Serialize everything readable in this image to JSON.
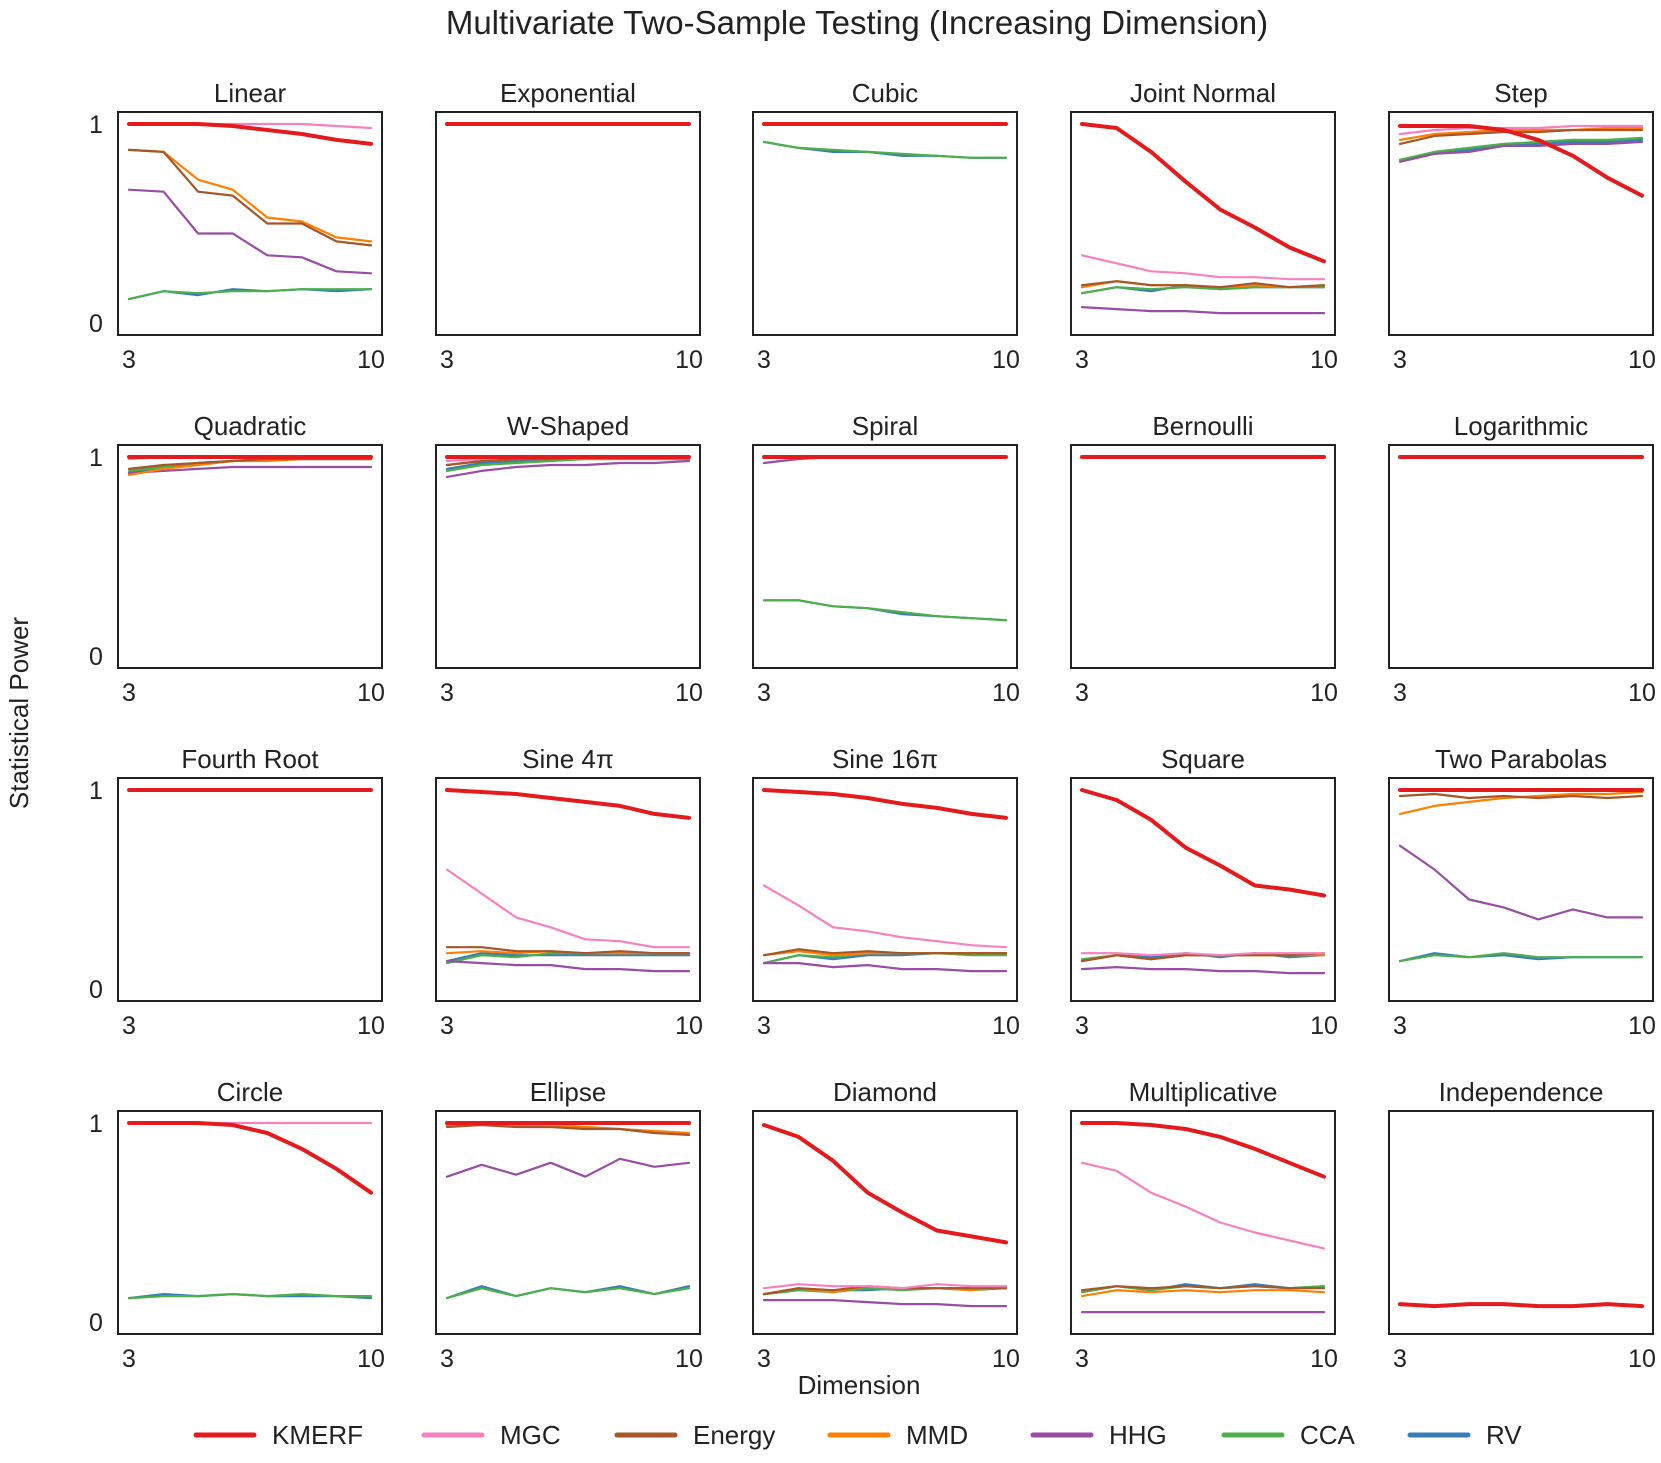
{
  "title": "Multivariate Two-Sample Testing (Increasing Dimension)",
  "xlabel": "Dimension",
  "ylabel": "Statistical Power",
  "legend": [
    {
      "key": "KMERF",
      "label": "KMERF",
      "color": "#e41a1c"
    },
    {
      "key": "MGC",
      "label": "MGC",
      "color": "#f781bf"
    },
    {
      "key": "Energy",
      "label": "Energy",
      "color": "#a65628"
    },
    {
      "key": "MMD",
      "label": "MMD",
      "color": "#ff7f00"
    },
    {
      "key": "HHG",
      "label": "HHG",
      "color": "#984ea3"
    },
    {
      "key": "CCA",
      "label": "CCA",
      "color": "#4daf4a"
    },
    {
      "key": "RV",
      "label": "RV",
      "color": "#377eb8"
    }
  ],
  "chart_data": {
    "type": "line",
    "x": [
      3,
      4,
      5,
      6,
      7,
      8,
      9,
      10
    ],
    "xticks": [
      "3",
      "10"
    ],
    "yticks": [
      "0",
      "1"
    ],
    "ylim": [
      0,
      1
    ],
    "panels": [
      {
        "title": "Linear",
        "series": {
          "RV": [
            0.12,
            0.16,
            0.14,
            0.17,
            0.16,
            0.17,
            0.16,
            0.17
          ],
          "CCA": [
            0.12,
            0.16,
            0.15,
            0.16,
            0.16,
            0.17,
            0.17,
            0.17
          ],
          "HHG": [
            0.67,
            0.66,
            0.45,
            0.45,
            0.34,
            0.33,
            0.26,
            0.25
          ],
          "Energy": [
            0.87,
            0.86,
            0.66,
            0.64,
            0.5,
            0.5,
            0.41,
            0.39
          ],
          "MMD": [
            0.87,
            0.86,
            0.72,
            0.67,
            0.53,
            0.51,
            0.43,
            0.41
          ],
          "MGC": [
            1.0,
            1.0,
            1.0,
            1.0,
            1.0,
            1.0,
            0.99,
            0.98
          ],
          "KMERF": [
            1.0,
            1.0,
            1.0,
            0.99,
            0.97,
            0.95,
            0.92,
            0.9
          ]
        }
      },
      {
        "title": "Exponential",
        "series": {
          "KMERF": [
            1.0,
            1.0,
            1.0,
            1.0,
            1.0,
            1.0,
            1.0,
            1.0
          ]
        }
      },
      {
        "title": "Cubic",
        "series": {
          "RV": [
            0.91,
            0.88,
            0.86,
            0.86,
            0.84,
            0.84,
            0.83,
            0.83
          ],
          "CCA": [
            0.91,
            0.88,
            0.87,
            0.86,
            0.85,
            0.84,
            0.83,
            0.83
          ],
          "KMERF": [
            1.0,
            1.0,
            1.0,
            1.0,
            1.0,
            1.0,
            1.0,
            1.0
          ]
        }
      },
      {
        "title": "Joint Normal",
        "series": {
          "HHG": [
            0.08,
            0.07,
            0.06,
            0.06,
            0.05,
            0.05,
            0.05,
            0.05
          ],
          "RV": [
            0.15,
            0.18,
            0.16,
            0.19,
            0.17,
            0.18,
            0.18,
            0.18
          ],
          "CCA": [
            0.15,
            0.18,
            0.17,
            0.18,
            0.17,
            0.18,
            0.18,
            0.18
          ],
          "MMD": [
            0.18,
            0.21,
            0.19,
            0.19,
            0.18,
            0.19,
            0.18,
            0.19
          ],
          "Energy": [
            0.19,
            0.21,
            0.19,
            0.19,
            0.18,
            0.2,
            0.18,
            0.19
          ],
          "MGC": [
            0.34,
            0.3,
            0.26,
            0.25,
            0.23,
            0.23,
            0.22,
            0.22
          ],
          "KMERF": [
            1.0,
            0.98,
            0.86,
            0.71,
            0.57,
            0.48,
            0.38,
            0.31
          ]
        }
      },
      {
        "title": "Step",
        "series": {
          "HHG": [
            0.81,
            0.85,
            0.86,
            0.89,
            0.89,
            0.9,
            0.9,
            0.91
          ],
          "RV": [
            0.82,
            0.85,
            0.87,
            0.89,
            0.9,
            0.91,
            0.91,
            0.92
          ],
          "CCA": [
            0.82,
            0.86,
            0.88,
            0.9,
            0.91,
            0.92,
            0.92,
            0.93
          ],
          "Energy": [
            0.9,
            0.94,
            0.95,
            0.96,
            0.96,
            0.97,
            0.97,
            0.97
          ],
          "MMD": [
            0.92,
            0.95,
            0.96,
            0.97,
            0.97,
            0.97,
            0.98,
            0.98
          ],
          "MGC": [
            0.95,
            0.97,
            0.98,
            0.98,
            0.98,
            0.99,
            0.99,
            0.99
          ],
          "KMERF": [
            0.99,
            0.99,
            0.99,
            0.97,
            0.92,
            0.84,
            0.73,
            0.64
          ]
        }
      },
      {
        "title": "Quadratic",
        "series": {
          "HHG": [
            0.92,
            0.93,
            0.94,
            0.95,
            0.95,
            0.95,
            0.95,
            0.95
          ],
          "RV": [
            0.92,
            0.95,
            0.97,
            0.98,
            0.99,
            0.99,
            0.99,
            0.99
          ],
          "CCA": [
            0.93,
            0.95,
            0.97,
            0.98,
            0.99,
            0.99,
            0.99,
            0.99
          ],
          "Energy": [
            0.94,
            0.96,
            0.97,
            0.98,
            0.99,
            0.99,
            0.99,
            0.99
          ],
          "MMD": [
            0.91,
            0.94,
            0.96,
            0.98,
            0.98,
            0.99,
            0.99,
            0.99
          ],
          "MGC": [
            0.99,
            1.0,
            1.0,
            1.0,
            1.0,
            1.0,
            1.0,
            1.0
          ],
          "KMERF": [
            1.0,
            1.0,
            1.0,
            1.0,
            1.0,
            1.0,
            1.0,
            1.0
          ]
        }
      },
      {
        "title": "W-Shaped",
        "series": {
          "HHG": [
            0.9,
            0.93,
            0.95,
            0.96,
            0.96,
            0.97,
            0.97,
            0.98
          ],
          "CCA": [
            0.93,
            0.96,
            0.97,
            0.98,
            0.99,
            0.99,
            0.99,
            0.99
          ],
          "RV": [
            0.94,
            0.97,
            0.98,
            0.99,
            0.99,
            0.99,
            0.99,
            0.99
          ],
          "Energy": [
            0.96,
            0.98,
            0.99,
            0.99,
            1.0,
            1.0,
            1.0,
            1.0
          ],
          "MMD": [
            0.96,
            0.98,
            0.99,
            0.99,
            1.0,
            1.0,
            1.0,
            1.0
          ],
          "MGC": [
            0.98,
            0.99,
            1.0,
            1.0,
            1.0,
            1.0,
            1.0,
            1.0
          ],
          "KMERF": [
            1.0,
            1.0,
            1.0,
            1.0,
            1.0,
            1.0,
            1.0,
            1.0
          ]
        }
      },
      {
        "title": "Spiral",
        "series": {
          "RV": [
            0.28,
            0.28,
            0.25,
            0.24,
            0.21,
            0.2,
            0.19,
            0.18
          ],
          "CCA": [
            0.28,
            0.28,
            0.25,
            0.24,
            0.22,
            0.2,
            0.19,
            0.18
          ],
          "HHG": [
            0.97,
            0.99,
            1.0,
            1.0,
            1.0,
            1.0,
            1.0,
            1.0
          ],
          "KMERF": [
            1.0,
            1.0,
            1.0,
            1.0,
            1.0,
            1.0,
            1.0,
            1.0
          ]
        }
      },
      {
        "title": "Bernoulli",
        "series": {
          "KMERF": [
            1.0,
            1.0,
            1.0,
            1.0,
            1.0,
            1.0,
            1.0,
            1.0
          ]
        }
      },
      {
        "title": "Logarithmic",
        "series": {
          "KMERF": [
            1.0,
            1.0,
            1.0,
            1.0,
            1.0,
            1.0,
            1.0,
            1.0
          ]
        }
      },
      {
        "title": "Fourth Root",
        "series": {
          "KMERF": [
            1.0,
            1.0,
            1.0,
            1.0,
            1.0,
            1.0,
            1.0,
            1.0
          ]
        }
      },
      {
        "title": "Sine 4π",
        "series": {
          "HHG": [
            0.14,
            0.13,
            0.12,
            0.12,
            0.1,
            0.1,
            0.09,
            0.09
          ],
          "RV": [
            0.14,
            0.18,
            0.17,
            0.17,
            0.17,
            0.17,
            0.17,
            0.17
          ],
          "CCA": [
            0.13,
            0.17,
            0.16,
            0.18,
            0.18,
            0.18,
            0.18,
            0.18
          ],
          "MMD": [
            0.18,
            0.19,
            0.18,
            0.19,
            0.18,
            0.18,
            0.18,
            0.18
          ],
          "Energy": [
            0.21,
            0.21,
            0.19,
            0.19,
            0.18,
            0.19,
            0.18,
            0.18
          ],
          "MGC": [
            0.6,
            0.48,
            0.36,
            0.31,
            0.25,
            0.24,
            0.21,
            0.21
          ],
          "KMERF": [
            1.0,
            0.99,
            0.98,
            0.96,
            0.94,
            0.92,
            0.88,
            0.86
          ]
        }
      },
      {
        "title": "Sine 16π",
        "series": {
          "HHG": [
            0.13,
            0.13,
            0.11,
            0.12,
            0.1,
            0.1,
            0.09,
            0.09
          ],
          "RV": [
            0.13,
            0.17,
            0.15,
            0.17,
            0.17,
            0.18,
            0.18,
            0.18
          ],
          "CCA": [
            0.13,
            0.17,
            0.16,
            0.18,
            0.18,
            0.18,
            0.17,
            0.17
          ],
          "MMD": [
            0.17,
            0.19,
            0.17,
            0.18,
            0.18,
            0.18,
            0.18,
            0.18
          ],
          "Energy": [
            0.17,
            0.2,
            0.18,
            0.19,
            0.18,
            0.18,
            0.18,
            0.18
          ],
          "MGC": [
            0.52,
            0.42,
            0.31,
            0.29,
            0.26,
            0.24,
            0.22,
            0.21
          ],
          "KMERF": [
            1.0,
            0.99,
            0.98,
            0.96,
            0.93,
            0.91,
            0.88,
            0.86
          ]
        }
      },
      {
        "title": "Square",
        "series": {
          "HHG": [
            0.1,
            0.11,
            0.1,
            0.1,
            0.09,
            0.09,
            0.08,
            0.08
          ],
          "RV": [
            0.14,
            0.17,
            0.16,
            0.18,
            0.16,
            0.18,
            0.16,
            0.17
          ],
          "CCA": [
            0.15,
            0.17,
            0.15,
            0.17,
            0.17,
            0.17,
            0.17,
            0.17
          ],
          "MMD": [
            0.14,
            0.17,
            0.15,
            0.17,
            0.17,
            0.17,
            0.17,
            0.17
          ],
          "Energy": [
            0.14,
            0.17,
            0.15,
            0.17,
            0.17,
            0.17,
            0.17,
            0.18
          ],
          "MGC": [
            0.18,
            0.18,
            0.17,
            0.18,
            0.17,
            0.18,
            0.18,
            0.18
          ],
          "KMERF": [
            1.0,
            0.95,
            0.85,
            0.71,
            0.62,
            0.52,
            0.5,
            0.47
          ]
        }
      },
      {
        "title": "Two Parabolas",
        "series": {
          "RV": [
            0.14,
            0.18,
            0.16,
            0.17,
            0.15,
            0.16,
            0.16,
            0.16
          ],
          "CCA": [
            0.14,
            0.17,
            0.16,
            0.18,
            0.16,
            0.16,
            0.16,
            0.16
          ],
          "HHG": [
            0.72,
            0.6,
            0.45,
            0.41,
            0.35,
            0.4,
            0.36,
            0.36
          ],
          "MMD": [
            0.88,
            0.92,
            0.94,
            0.96,
            0.97,
            0.98,
            0.98,
            0.99
          ],
          "Energy": [
            0.97,
            0.98,
            0.96,
            0.97,
            0.96,
            0.97,
            0.96,
            0.97
          ],
          "MGC": [
            1.0,
            1.0,
            1.0,
            1.0,
            1.0,
            1.0,
            1.0,
            1.0
          ],
          "KMERF": [
            1.0,
            1.0,
            1.0,
            1.0,
            1.0,
            1.0,
            1.0,
            1.0
          ]
        }
      },
      {
        "title": "Circle",
        "series": {
          "RV": [
            0.12,
            0.14,
            0.13,
            0.14,
            0.13,
            0.13,
            0.13,
            0.12
          ],
          "CCA": [
            0.12,
            0.13,
            0.13,
            0.14,
            0.13,
            0.14,
            0.13,
            0.13
          ],
          "MGC": [
            1.0,
            1.0,
            1.0,
            1.0,
            1.0,
            1.0,
            1.0,
            1.0
          ],
          "KMERF": [
            1.0,
            1.0,
            1.0,
            0.99,
            0.95,
            0.87,
            0.77,
            0.65
          ]
        }
      },
      {
        "title": "Ellipse",
        "series": {
          "RV": [
            0.12,
            0.18,
            0.13,
            0.17,
            0.15,
            0.18,
            0.14,
            0.18
          ],
          "CCA": [
            0.12,
            0.17,
            0.13,
            0.17,
            0.15,
            0.17,
            0.14,
            0.17
          ],
          "HHG": [
            0.73,
            0.79,
            0.74,
            0.8,
            0.73,
            0.82,
            0.78,
            0.8
          ],
          "Energy": [
            0.98,
            0.99,
            0.98,
            0.98,
            0.97,
            0.97,
            0.95,
            0.94
          ],
          "MMD": [
            0.99,
            0.99,
            0.99,
            0.99,
            0.98,
            0.97,
            0.96,
            0.95
          ],
          "MGC": [
            1.0,
            1.0,
            1.0,
            1.0,
            1.0,
            1.0,
            1.0,
            1.0
          ],
          "KMERF": [
            1.0,
            1.0,
            1.0,
            1.0,
            1.0,
            1.0,
            1.0,
            1.0
          ]
        }
      },
      {
        "title": "Diamond",
        "series": {
          "HHG": [
            0.11,
            0.11,
            0.11,
            0.1,
            0.09,
            0.09,
            0.08,
            0.08
          ],
          "CCA": [
            0.14,
            0.16,
            0.15,
            0.17,
            0.16,
            0.17,
            0.16,
            0.17
          ],
          "RV": [
            0.14,
            0.16,
            0.16,
            0.16,
            0.17,
            0.17,
            0.17,
            0.17
          ],
          "MMD": [
            0.14,
            0.17,
            0.15,
            0.18,
            0.17,
            0.17,
            0.16,
            0.18
          ],
          "Energy": [
            0.14,
            0.17,
            0.16,
            0.18,
            0.17,
            0.17,
            0.17,
            0.17
          ],
          "MGC": [
            0.17,
            0.19,
            0.18,
            0.18,
            0.17,
            0.19,
            0.18,
            0.18
          ],
          "KMERF": [
            0.99,
            0.93,
            0.81,
            0.65,
            0.55,
            0.46,
            0.43,
            0.4
          ]
        }
      },
      {
        "title": "Multiplicative",
        "series": {
          "HHG": [
            0.05,
            0.05,
            0.05,
            0.05,
            0.05,
            0.05,
            0.05,
            0.05
          ],
          "MMD": [
            0.13,
            0.16,
            0.15,
            0.16,
            0.15,
            0.16,
            0.16,
            0.15
          ],
          "CCA": [
            0.15,
            0.18,
            0.16,
            0.18,
            0.17,
            0.18,
            0.17,
            0.18
          ],
          "RV": [
            0.15,
            0.18,
            0.16,
            0.19,
            0.17,
            0.19,
            0.17,
            0.18
          ],
          "Energy": [
            0.16,
            0.18,
            0.17,
            0.18,
            0.17,
            0.18,
            0.17,
            0.17
          ],
          "MGC": [
            0.8,
            0.76,
            0.65,
            0.58,
            0.5,
            0.45,
            0.41,
            0.37
          ],
          "KMERF": [
            1.0,
            1.0,
            0.99,
            0.97,
            0.93,
            0.87,
            0.8,
            0.73
          ]
        }
      },
      {
        "title": "Independence",
        "series": {
          "KMERF": [
            0.09,
            0.08,
            0.09,
            0.09,
            0.08,
            0.08,
            0.09,
            0.08
          ]
        }
      }
    ]
  }
}
